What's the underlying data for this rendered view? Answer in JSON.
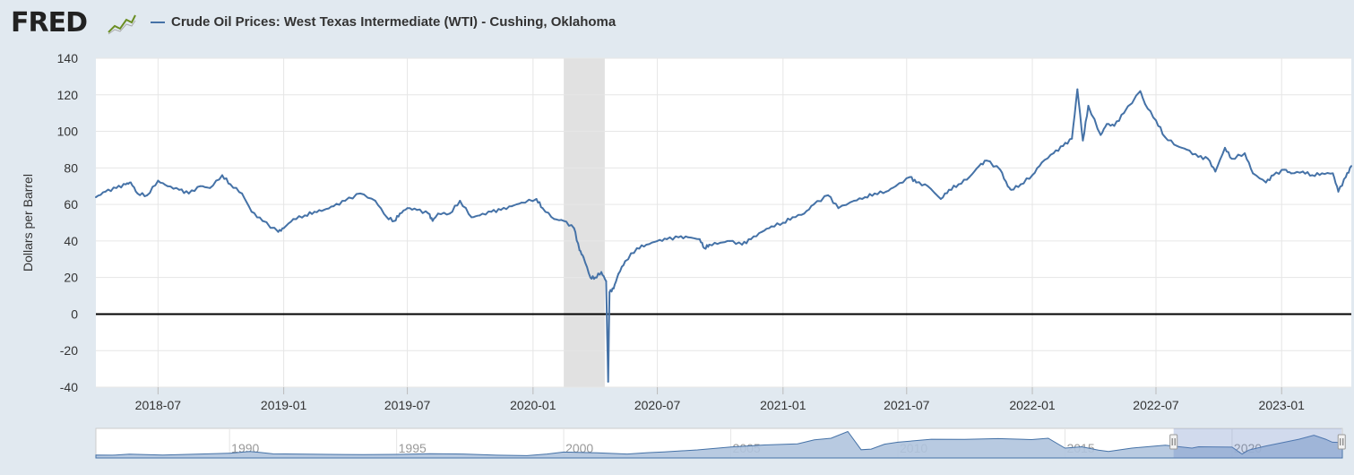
{
  "header": {
    "logo_text": "FRED",
    "logo_icon": "chart-line-icon"
  },
  "colors": {
    "background": "#e1e9f0",
    "plot_background": "#ffffff",
    "series": "#4572a7",
    "recession": "#e1e1e1",
    "navigator_fill": "#b0c4de"
  },
  "chart_data": {
    "type": "line",
    "title": "",
    "ylabel": "Dollars per Barrel",
    "xlabel": "",
    "ylim": [
      -40,
      140
    ],
    "yticks": [
      140,
      120,
      100,
      80,
      60,
      40,
      20,
      0,
      -20,
      -40
    ],
    "y_tick_labels": [
      "140",
      "120",
      "100",
      "80",
      "60",
      "40",
      "20",
      "0",
      "-20",
      "-40"
    ],
    "xlim": [
      "2018-04-01",
      "2023-04-13"
    ],
    "xticks": [
      "2018-07-01",
      "2019-01-01",
      "2019-07-01",
      "2020-01-01",
      "2020-07-01",
      "2021-01-01",
      "2021-07-01",
      "2022-01-01",
      "2022-07-01",
      "2023-01-01"
    ],
    "x_tick_labels": [
      "2018-07",
      "2019-01",
      "2019-07",
      "2020-01",
      "2020-07",
      "2021-01",
      "2021-07",
      "2022-01",
      "2022-07",
      "2023-01"
    ],
    "grid": true,
    "legend_position": "top-left",
    "recession_shading": [
      {
        "start": "2020-02-15",
        "end": "2020-04-15"
      }
    ],
    "series": [
      {
        "name": "Crude Oil Prices: West Texas Intermediate (WTI) - Cushing, Oklahoma",
        "x": [
          "2018-04-01",
          "2018-04-15",
          "2018-05-01",
          "2018-05-15",
          "2018-05-22",
          "2018-06-01",
          "2018-06-15",
          "2018-07-01",
          "2018-07-15",
          "2018-08-01",
          "2018-08-15",
          "2018-09-01",
          "2018-09-15",
          "2018-10-03",
          "2018-10-15",
          "2018-11-01",
          "2018-11-15",
          "2018-12-01",
          "2018-12-24",
          "2019-01-01",
          "2019-01-15",
          "2019-02-01",
          "2019-02-15",
          "2019-03-01",
          "2019-03-15",
          "2019-04-01",
          "2019-04-23",
          "2019-05-15",
          "2019-06-01",
          "2019-06-12",
          "2019-06-20",
          "2019-07-01",
          "2019-07-15",
          "2019-08-01",
          "2019-08-07",
          "2019-08-15",
          "2019-09-01",
          "2019-09-16",
          "2019-10-03",
          "2019-10-15",
          "2019-11-01",
          "2019-11-15",
          "2019-12-01",
          "2019-12-15",
          "2020-01-06",
          "2020-01-15",
          "2020-02-01",
          "2020-02-15",
          "2020-03-01",
          "2020-03-09",
          "2020-03-15",
          "2020-03-25",
          "2020-04-01",
          "2020-04-10",
          "2020-04-17",
          "2020-04-20",
          "2020-04-22",
          "2020-04-28",
          "2020-05-05",
          "2020-05-15",
          "2020-06-01",
          "2020-06-15",
          "2020-07-01",
          "2020-07-15",
          "2020-08-01",
          "2020-08-15",
          "2020-09-01",
          "2020-09-08",
          "2020-09-15",
          "2020-10-01",
          "2020-10-15",
          "2020-11-02",
          "2020-11-15",
          "2020-12-01",
          "2020-12-15",
          "2021-01-01",
          "2021-01-15",
          "2021-02-01",
          "2021-02-15",
          "2021-03-08",
          "2021-03-23",
          "2021-04-15",
          "2021-05-01",
          "2021-05-15",
          "2021-06-01",
          "2021-06-15",
          "2021-07-06",
          "2021-07-15",
          "2021-08-01",
          "2021-08-20",
          "2021-09-01",
          "2021-09-15",
          "2021-10-01",
          "2021-10-15",
          "2021-10-26",
          "2021-11-15",
          "2021-11-26",
          "2021-12-01",
          "2021-12-15",
          "2022-01-01",
          "2022-01-15",
          "2022-02-01",
          "2022-02-15",
          "2022-02-28",
          "2022-03-08",
          "2022-03-16",
          "2022-03-24",
          "2022-04-11",
          "2022-04-20",
          "2022-05-01",
          "2022-05-15",
          "2022-06-08",
          "2022-06-15",
          "2022-07-01",
          "2022-07-14",
          "2022-08-01",
          "2022-08-15",
          "2022-09-01",
          "2022-09-15",
          "2022-09-26",
          "2022-10-10",
          "2022-10-20",
          "2022-11-08",
          "2022-11-20",
          "2022-12-09",
          "2022-12-20",
          "2023-01-05",
          "2023-01-15",
          "2023-02-01",
          "2023-02-15",
          "2023-03-01",
          "2023-03-17",
          "2023-03-25",
          "2023-04-05",
          "2023-04-13"
        ],
        "values": [
          64,
          67,
          69,
          71,
          72,
          66,
          65,
          73,
          70,
          68,
          66,
          70,
          69,
          76,
          71,
          66,
          56,
          51,
          45,
          47,
          52,
          54,
          56,
          57,
          59,
          62,
          66,
          62,
          53,
          51,
          55,
          58,
          57,
          55,
          51,
          55,
          55,
          62,
          53,
          54,
          56,
          57,
          59,
          61,
          63,
          58,
          52,
          51,
          47,
          35,
          31,
          20,
          20,
          23,
          18,
          -37,
          12,
          14,
          22,
          29,
          36,
          38,
          40,
          41,
          42,
          42,
          41,
          36,
          38,
          39,
          40,
          38,
          41,
          45,
          48,
          50,
          53,
          55,
          60,
          65,
          58,
          62,
          64,
          66,
          67,
          70,
          75,
          72,
          70,
          63,
          68,
          71,
          75,
          81,
          84,
          79,
          70,
          68,
          71,
          76,
          83,
          88,
          92,
          96,
          123,
          95,
          114,
          98,
          104,
          103,
          110,
          122,
          115,
          106,
          97,
          92,
          90,
          86,
          85,
          78,
          91,
          85,
          88,
          77,
          72,
          76,
          79,
          77,
          78,
          76,
          77,
          77,
          67,
          75,
          81
        ]
      }
    ]
  },
  "navigator": {
    "x_labels": [
      "1990",
      "1995",
      "2000",
      "2005",
      "2010",
      "2015",
      "2020"
    ],
    "x_years": [
      1990,
      1995,
      2000,
      2005,
      2010,
      2015,
      2020
    ],
    "xlim": [
      1986,
      2023.3
    ],
    "selection": [
      2018.25,
      2023.28
    ],
    "overview_x": [
      1986,
      1986.5,
      1987,
      1988,
      1989,
      1990,
      1990.6,
      1990.9,
      1991.3,
      1992,
      1993,
      1994,
      1995,
      1996,
      1997,
      1998,
      1998.9,
      1999.5,
      2000,
      2001,
      2001.9,
      2002.5,
      2003,
      2004,
      2005,
      2006,
      2007,
      2007.5,
      2008.0,
      2008.5,
      2008.9,
      2009.2,
      2009.6,
      2010,
      2011,
      2012,
      2013,
      2014,
      2014.5,
      2015,
      2015.5,
      2016,
      2016.3,
      2017,
      2018,
      2018.8,
      2019,
      2020,
      2020.3,
      2020.5,
      2021,
      2022,
      2022.45,
      2022.8,
      2023,
      2023.3
    ],
    "overview_values": [
      15,
      14,
      19,
      15,
      19,
      24,
      33,
      28,
      21,
      20,
      18,
      17,
      18,
      22,
      20,
      14,
      12,
      20,
      30,
      26,
      20,
      27,
      31,
      41,
      56,
      66,
      72,
      92,
      100,
      134,
      42,
      45,
      70,
      80,
      95,
      94,
      98,
      93,
      100,
      50,
      57,
      40,
      33,
      50,
      65,
      50,
      57,
      55,
      20,
      40,
      60,
      95,
      115,
      95,
      80,
      78
    ]
  }
}
